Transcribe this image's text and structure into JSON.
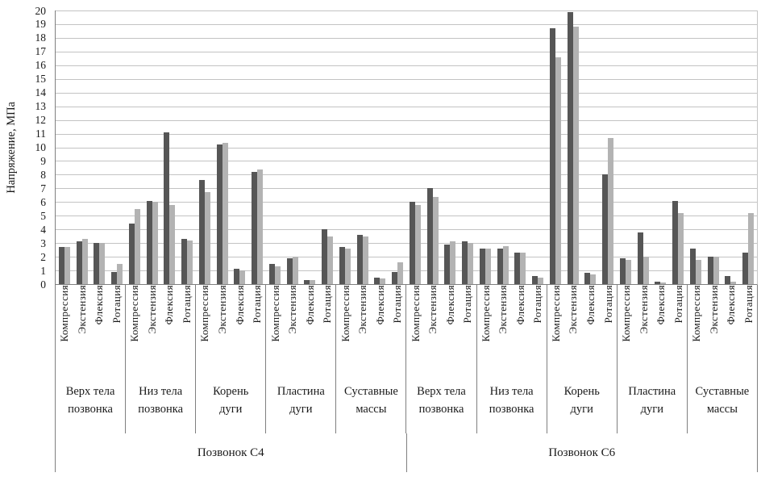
{
  "chart_data": {
    "type": "bar",
    "title": "",
    "ylabel": "Напряжение, МПа",
    "ylim": [
      0,
      20
    ],
    "ytick_step": 1,
    "yticks": [
      "0",
      "1",
      "2",
      "3",
      "4",
      "5",
      "6",
      "7",
      "8",
      "9",
      "10",
      "11",
      "12",
      "13",
      "14",
      "15",
      "16",
      "17",
      "18",
      "19",
      "20"
    ],
    "grid": true,
    "legend_position": "none",
    "categories": [
      "Компрессия",
      "Экстензия",
      "Флексия",
      "Ротация"
    ],
    "series": [
      {
        "name": "dark-gray-series",
        "color": "#565656"
      },
      {
        "name": "light-gray-series",
        "color": "#b3b3b3"
      }
    ],
    "vertebrae": [
      {
        "label": "Позвонок C4",
        "regions": [
          {
            "label_lines": [
              "Верх тела",
              "позвонка"
            ],
            "dark": [
              2.7,
              3.1,
              3.0,
              0.9
            ],
            "light": [
              2.7,
              3.3,
              3.0,
              1.5
            ]
          },
          {
            "label_lines": [
              "Низ тела",
              "позвонка"
            ],
            "dark": [
              4.4,
              6.1,
              11.1,
              3.3
            ],
            "light": [
              5.5,
              6.0,
              5.8,
              3.2
            ]
          },
          {
            "label_lines": [
              "Корень",
              "дуги"
            ],
            "dark": [
              7.6,
              10.2,
              1.1,
              8.2
            ],
            "light": [
              6.7,
              10.3,
              1.0,
              8.4
            ]
          },
          {
            "label_lines": [
              "Пластина",
              "дуги"
            ],
            "dark": [
              1.5,
              1.9,
              0.3,
              4.0
            ],
            "light": [
              1.3,
              2.0,
              0.3,
              3.5
            ]
          },
          {
            "label_lines": [
              "Суставные",
              "массы"
            ],
            "dark": [
              2.7,
              3.6,
              0.5,
              0.9
            ],
            "light": [
              2.6,
              3.5,
              0.4,
              1.6
            ]
          }
        ]
      },
      {
        "label": "Позвонок C6",
        "regions": [
          {
            "label_lines": [
              "Верх тела",
              "позвонка"
            ],
            "dark": [
              6.0,
              7.0,
              2.9,
              3.1
            ],
            "light": [
              5.8,
              6.4,
              3.1,
              3.0
            ]
          },
          {
            "label_lines": [
              "Низ тела",
              "позвонка"
            ],
            "dark": [
              2.6,
              2.6,
              2.3,
              0.6
            ],
            "light": [
              2.6,
              2.8,
              2.3,
              0.5
            ]
          },
          {
            "label_lines": [
              "Корень",
              "дуги"
            ],
            "dark": [
              18.7,
              19.9,
              0.8,
              8.0
            ],
            "light": [
              16.6,
              18.8,
              0.7,
              10.7
            ]
          },
          {
            "label_lines": [
              "Пластина",
              "дуги"
            ],
            "dark": [
              1.9,
              3.8,
              0.2,
              6.1
            ],
            "light": [
              1.8,
              2.0,
              0.1,
              5.2
            ]
          },
          {
            "label_lines": [
              "Суставные",
              "массы"
            ],
            "dark": [
              2.6,
              2.0,
              0.6,
              2.3
            ],
            "light": [
              1.8,
              2.0,
              0.2,
              5.2
            ]
          }
        ]
      }
    ],
    "colors": {
      "gridline": "#c3c3c3",
      "axis": "#7f7f7f",
      "text": "#1a1a1a"
    }
  }
}
